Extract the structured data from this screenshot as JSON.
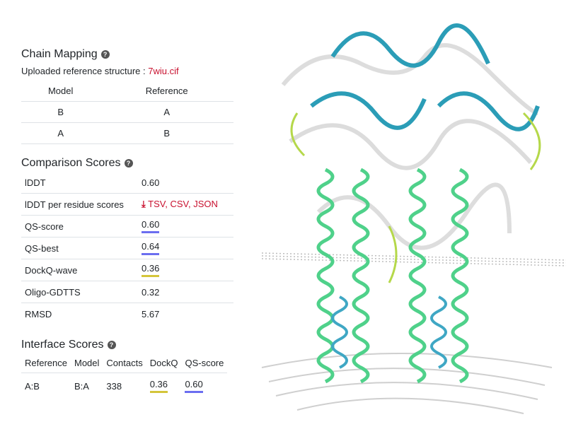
{
  "chain_mapping": {
    "title": "Chain Mapping",
    "ref_prefix": "Uploaded reference structure : ",
    "ref_file": "7wiu.cif",
    "headers": [
      "Model",
      "Reference"
    ],
    "rows": [
      [
        "B",
        "A"
      ],
      [
        "A",
        "B"
      ]
    ]
  },
  "comparison": {
    "title": "Comparison Scores",
    "rows": [
      {
        "label": "lDDT",
        "value": "0.60"
      },
      {
        "label": "lDDT per residue scores",
        "links": "TSV, CSV, JSON"
      },
      {
        "label": "QS-score",
        "value": "0.60"
      },
      {
        "label": "QS-best",
        "value": "0.64"
      },
      {
        "label": "DockQ-wave",
        "value": "0.36"
      },
      {
        "label": "Oligo-GDTTS",
        "value": "0.32"
      },
      {
        "label": "RMSD",
        "value": "5.67"
      }
    ]
  },
  "interface": {
    "title": "Interface Scores",
    "headers": [
      "Reference",
      "Model",
      "Contacts",
      "DockQ",
      "QS-score"
    ],
    "rows": [
      [
        "A:B",
        "B:A",
        "338",
        "0.36",
        "0.60"
      ]
    ]
  },
  "icons": {
    "help": "question-circle-icon",
    "download": "download-icon"
  },
  "colors": {
    "link": "#c8102e",
    "qs_underline": "#6b6ef0",
    "dockq_underline": "#d4c53a"
  }
}
